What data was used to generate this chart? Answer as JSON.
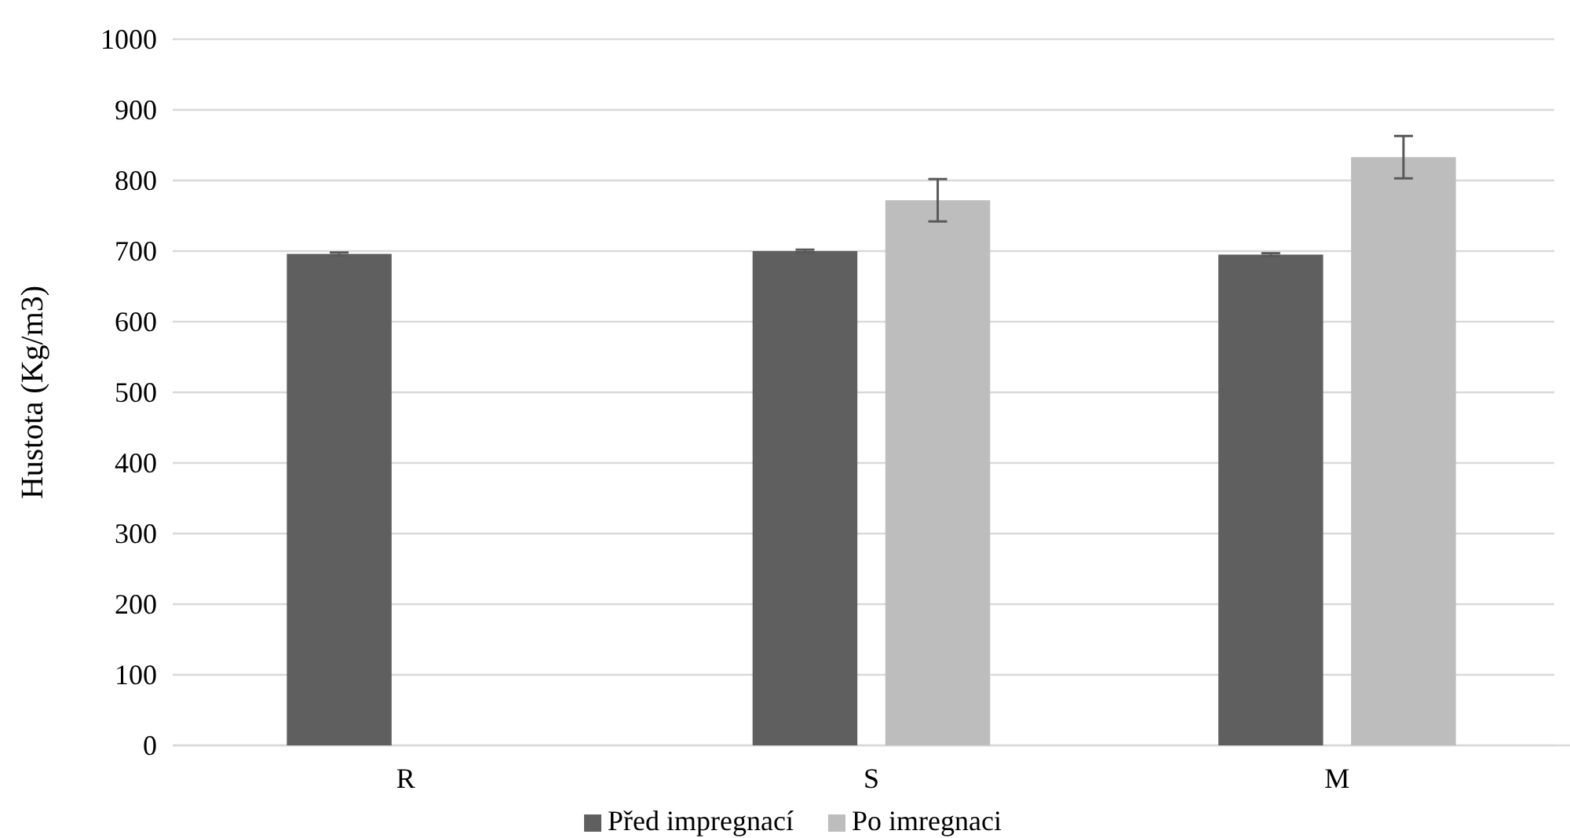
{
  "chart_data": {
    "type": "bar",
    "ylabel": "Hustota (Kg/m3)",
    "categories": [
      "R",
      "S",
      "M"
    ],
    "series": [
      {
        "name": "Před impregnací",
        "color": "#5f5f5f",
        "values": [
          696,
          700,
          695
        ],
        "errors": [
          2,
          2,
          2
        ]
      },
      {
        "name": "Po imregnaci",
        "color": "#bdbdbd",
        "values": [
          null,
          772,
          833
        ],
        "errors": [
          null,
          30,
          30
        ]
      }
    ],
    "ylim": [
      0,
      1000
    ],
    "yticks": [
      0,
      100,
      200,
      300,
      400,
      500,
      600,
      700,
      800,
      900,
      1000
    ],
    "grid": "y",
    "legend": "bottom"
  }
}
